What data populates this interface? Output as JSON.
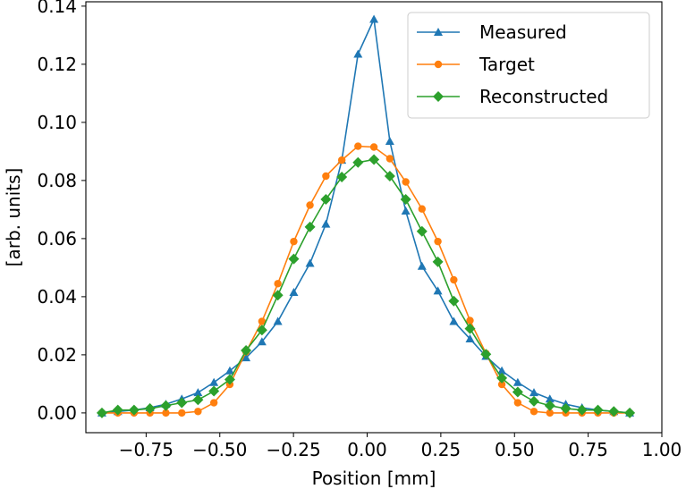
{
  "chart_data": {
    "type": "line",
    "title": "",
    "xlabel": "Position [mm]",
    "ylabel": "[arb. units]",
    "xlim": [
      -0.9545,
      1.0
    ],
    "ylim": [
      -0.0068,
      0.1415
    ],
    "xticks": [
      -0.75,
      -0.5,
      -0.25,
      0.0,
      0.25,
      0.5,
      0.75,
      1.0
    ],
    "xtick_labels": [
      "−0.75",
      "−0.50",
      "−0.25",
      "0.00",
      "0.25",
      "0.50",
      "0.75",
      "1.00"
    ],
    "yticks": [
      0.0,
      0.02,
      0.04,
      0.06,
      0.08,
      0.1,
      0.12,
      0.14
    ],
    "ytick_labels": [
      "0.00",
      "0.02",
      "0.04",
      "0.06",
      "0.08",
      "0.10",
      "0.12",
      "0.14"
    ],
    "grid": false,
    "legend_position": "top-right",
    "x": [
      -0.9,
      -0.846,
      -0.791,
      -0.737,
      -0.683,
      -0.629,
      -0.574,
      -0.52,
      -0.466,
      -0.411,
      -0.357,
      -0.303,
      -0.249,
      -0.194,
      -0.14,
      -0.086,
      -0.031,
      0.023,
      0.077,
      0.131,
      0.186,
      0.24,
      0.294,
      0.349,
      0.403,
      0.457,
      0.511,
      0.566,
      0.62,
      0.674,
      0.729,
      0.783,
      0.837,
      0.891
    ],
    "series": [
      {
        "name": "Measured",
        "color": "#1f77b4",
        "marker": "triangle",
        "values": [
          0.0,
          0.0005,
          0.001,
          0.0018,
          0.003,
          0.0048,
          0.007,
          0.0105,
          0.0145,
          0.019,
          0.0245,
          0.0315,
          0.0415,
          0.0515,
          0.065,
          0.087,
          0.1235,
          0.1355,
          0.0935,
          0.0695,
          0.0505,
          0.042,
          0.0315,
          0.0255,
          0.0195,
          0.0145,
          0.0105,
          0.007,
          0.0048,
          0.003,
          0.0018,
          0.001,
          0.0005,
          0.0
        ]
      },
      {
        "name": "Target",
        "color": "#ff7f0e",
        "marker": "circle",
        "values": [
          0.0,
          0.0,
          0.0,
          0.0,
          0.0,
          0.0,
          0.0005,
          0.0035,
          0.0098,
          0.021,
          0.0315,
          0.0445,
          0.059,
          0.0715,
          0.0815,
          0.087,
          0.0918,
          0.0915,
          0.0875,
          0.0795,
          0.0702,
          0.059,
          0.0458,
          0.0318,
          0.0205,
          0.0098,
          0.0035,
          0.0005,
          0.0,
          0.0,
          0.0,
          0.0,
          0.0,
          0.0
        ]
      },
      {
        "name": "Reconstructed",
        "color": "#2ca02c",
        "marker": "diamond",
        "values": [
          0.0,
          0.001,
          0.001,
          0.0015,
          0.0025,
          0.0035,
          0.0045,
          0.0075,
          0.0115,
          0.0215,
          0.0285,
          0.0405,
          0.053,
          0.064,
          0.0735,
          0.0812,
          0.0862,
          0.0872,
          0.0815,
          0.0735,
          0.0625,
          0.052,
          0.0385,
          0.029,
          0.0202,
          0.012,
          0.0072,
          0.004,
          0.0025,
          0.0015,
          0.001,
          0.001,
          0.0005,
          0.0
        ]
      }
    ]
  }
}
